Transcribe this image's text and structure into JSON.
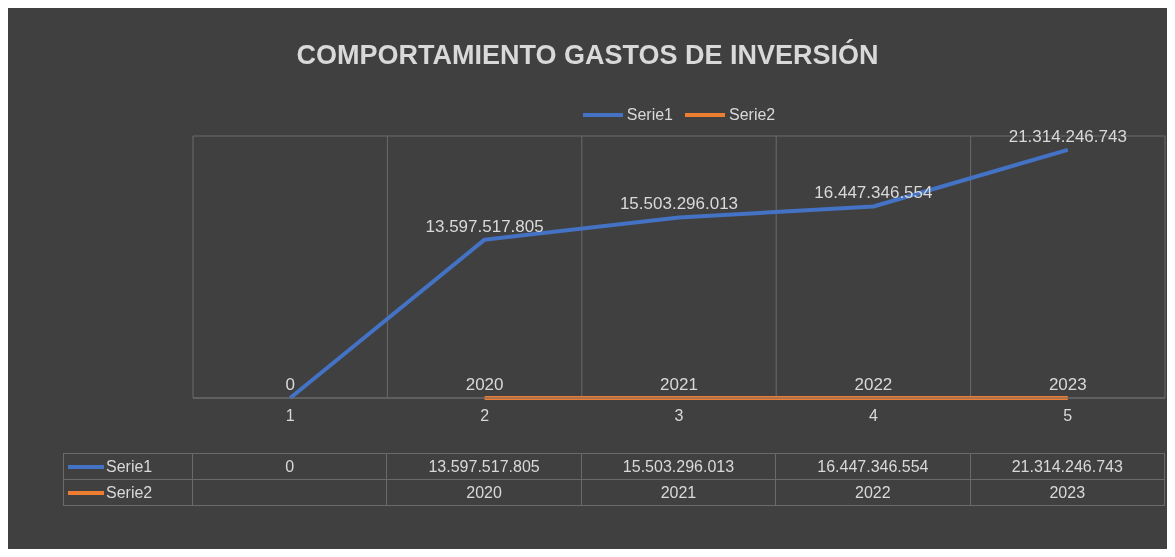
{
  "chart_data": {
    "type": "line",
    "title": "COMPORTAMIENTO GASTOS DE INVERSIÓN",
    "categories": [
      "1",
      "2",
      "3",
      "4",
      "5"
    ],
    "series": [
      {
        "name": "Serie1",
        "color": "#4472c4",
        "values": [
          0,
          13597517805,
          15503296013,
          16447346554,
          21314246743
        ],
        "value_labels": [
          "0",
          "13.597.517.805",
          "15.503.296.013",
          "16.447.346.554",
          "21.314.246.743"
        ]
      },
      {
        "name": "Serie2",
        "color": "#ed7d31",
        "values": [
          null,
          2020,
          2021,
          2022,
          2023
        ],
        "value_labels": [
          null,
          "2020",
          "2021",
          "2022",
          "2023"
        ]
      }
    ],
    "tick_labels": "x",
    "grid": true,
    "legend": "top",
    "marker": "none",
    "line_style": "solid"
  }
}
